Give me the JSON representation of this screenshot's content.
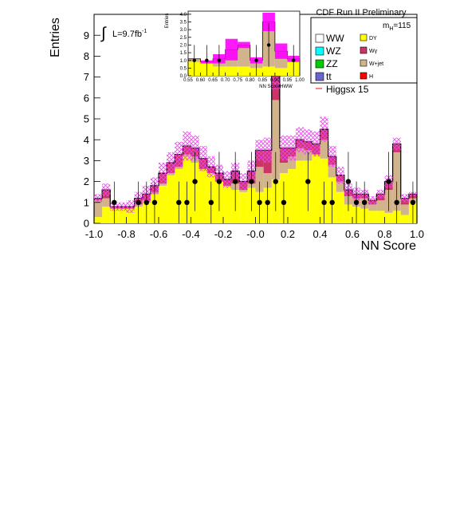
{
  "chart_data": [
    {
      "type": "bar",
      "subtitle": "CDF Run II Preliminary",
      "mass_label": "m",
      "mass_sub": "H",
      "mass_value": "=115",
      "lumi_prefix": "L=9.7fb",
      "lumi_exp": "-1",
      "xlabel": "NN Score",
      "ylabel": "Entries",
      "xlim": [
        -1.0,
        1.0
      ],
      "ylim": [
        0,
        10
      ],
      "xticks": [
        "-1.0",
        "-0.8",
        "-0.6",
        "-0.4",
        "-0.2",
        "-0.0",
        "0.2",
        "0.4",
        "0.6",
        "0.8",
        "1.0"
      ],
      "yticks": [
        "0",
        "1",
        "2",
        "3",
        "4",
        "5",
        "6",
        "7",
        "8",
        "9"
      ],
      "bin_edges": [
        -1.0,
        -0.95,
        -0.9,
        -0.85,
        -0.8,
        -0.75,
        -0.7,
        -0.65,
        -0.6,
        -0.55,
        -0.5,
        -0.45,
        -0.4,
        -0.35,
        -0.3,
        -0.25,
        -0.2,
        -0.15,
        -0.1,
        -0.05,
        0.0,
        0.05,
        0.1,
        0.15,
        0.2,
        0.25,
        0.3,
        0.35,
        0.4,
        0.45,
        0.5,
        0.55,
        0.6,
        0.65,
        0.7,
        0.75,
        0.8,
        0.85,
        0.9,
        0.95,
        1.0
      ],
      "series": [
        {
          "name": "DY",
          "color": "#ffff00",
          "values": [
            0.3,
            0.8,
            0.7,
            0.7,
            0.7,
            0.8,
            1.0,
            1.4,
            1.8,
            2.3,
            2.6,
            3.2,
            2.9,
            2.6,
            2.4,
            2.0,
            1.8,
            1.6,
            1.5,
            1.7,
            1.5,
            1.7,
            2.1,
            2.4,
            2.6,
            3.0,
            3.0,
            3.3,
            3.1,
            2.2,
            1.5,
            0.9,
            0.8,
            0.7,
            0.6,
            0.6,
            0.5,
            0.6,
            0.4,
            1.0
          ]
        },
        {
          "name": "W+jet",
          "color": "#d2b48c",
          "values": [
            0.8,
            0.4,
            0.0,
            0.0,
            0.0,
            0.1,
            0.1,
            0.1,
            0.1,
            0.1,
            0.1,
            0.1,
            0.3,
            0.0,
            0.0,
            0.0,
            0.0,
            0.3,
            0.1,
            0.2,
            1.2,
            0.7,
            3.8,
            0.5,
            0.6,
            0.6,
            0.5,
            0.0,
            0.9,
            0.6,
            0.5,
            0.4,
            0.4,
            0.5,
            0.3,
            0.5,
            1.1,
            2.8,
            0.5,
            0.2
          ]
        },
        {
          "name": "Wγ",
          "color": "#cc3366",
          "values": [
            0.1,
            0.4,
            0.1,
            0.1,
            0.1,
            0.3,
            0.3,
            0.3,
            0.5,
            0.5,
            0.6,
            0.4,
            0.4,
            0.5,
            0.3,
            0.4,
            0.3,
            0.6,
            0.4,
            0.6,
            0.8,
            1.1,
            1.2,
            0.7,
            0.4,
            0.4,
            0.4,
            0.5,
            0.5,
            0.4,
            0.3,
            0.3,
            0.2,
            0.2,
            0.2,
            0.3,
            0.4,
            0.4,
            0.3,
            0.2
          ]
        },
        {
          "name": "Higgsx 15",
          "color": "#ff0000",
          "values": [
            0.2,
            0.3,
            0.2,
            0.2,
            0.3,
            0.3,
            0.4,
            0.4,
            0.5,
            0.5,
            0.6,
            0.7,
            0.6,
            0.6,
            0.5,
            0.4,
            0.4,
            0.4,
            0.4,
            0.5,
            0.5,
            0.6,
            0.7,
            0.6,
            0.6,
            0.6,
            0.6,
            0.6,
            0.6,
            0.5,
            0.4,
            0.3,
            0.3,
            0.2,
            0.2,
            0.2,
            0.3,
            0.3,
            0.2,
            0.1
          ]
        }
      ],
      "data_points": {
        "x": [
          -0.875,
          -0.725,
          -0.675,
          -0.625,
          -0.475,
          -0.425,
          -0.375,
          -0.275,
          -0.225,
          -0.125,
          -0.025,
          0.025,
          0.075,
          0.125,
          0.175,
          0.325,
          0.425,
          0.475,
          0.575,
          0.625,
          0.675,
          0.825,
          0.875,
          0.975
        ],
        "y": [
          1,
          1,
          1,
          1,
          1,
          1,
          2,
          1,
          2,
          2,
          2,
          1,
          1,
          2,
          1,
          2,
          1,
          1,
          2,
          1,
          1,
          2,
          1,
          1
        ]
      },
      "legend_entries": [
        {
          "label": "WW",
          "color": "#ffffff"
        },
        {
          "label": "DY",
          "color": "#ffff00"
        },
        {
          "label": "WZ",
          "color": "#00ffff"
        },
        {
          "label": "Wγ",
          "color": "#cc3366"
        },
        {
          "label": "ZZ",
          "color": "#00cc00"
        },
        {
          "label": "W+jet",
          "color": "#d2b48c"
        },
        {
          "label": "tt",
          "color": "#6666cc"
        },
        {
          "label": "H",
          "color": "#ff0000"
        },
        {
          "label": "Higgsx 15",
          "color": "#ff0000"
        }
      ],
      "legend_position": "top-right",
      "grid": false
    },
    {
      "type": "bar",
      "xlabel": "NN ScoreHWW",
      "ylabel": "Entries",
      "xlim": [
        0.55,
        1.0
      ],
      "ylim": [
        0,
        4.2
      ],
      "xticks": [
        "0.55",
        "0.60",
        "0.65",
        "0.70",
        "0.75",
        "0.80",
        "0.85",
        "0.90",
        "0.95",
        "1.00"
      ],
      "yticks": [
        "0.0",
        "0.5",
        "1.0",
        "1.5",
        "2.0",
        "2.5",
        "3.0",
        "3.5",
        "4.0"
      ],
      "bin_edges": [
        0.55,
        0.6,
        0.65,
        0.7,
        0.75,
        0.8,
        0.85,
        0.9,
        0.95,
        1.0
      ],
      "series": [
        {
          "name": "DY",
          "color": "#ffff00",
          "values": [
            0.9,
            0.9,
            0.6,
            0.6,
            0.6,
            0.5,
            0.6,
            0.5,
            0.9
          ]
        },
        {
          "name": "W+jet",
          "color": "#d2b48c",
          "values": [
            0.2,
            0.0,
            0.5,
            1.1,
            1.4,
            0.5,
            2.9,
            1.1,
            0.2
          ]
        },
        {
          "name": "Higgsx 15",
          "color": "#ff00ff",
          "values": [
            0.0,
            0.1,
            0.3,
            0.7,
            0.2,
            0.2,
            0.6,
            0.5,
            0.2
          ]
        }
      ],
      "data_points": {
        "x": [
          0.575,
          0.625,
          0.675,
          0.825,
          0.875,
          0.975
        ],
        "y": [
          1,
          1,
          1,
          1,
          2,
          1
        ]
      }
    }
  ]
}
